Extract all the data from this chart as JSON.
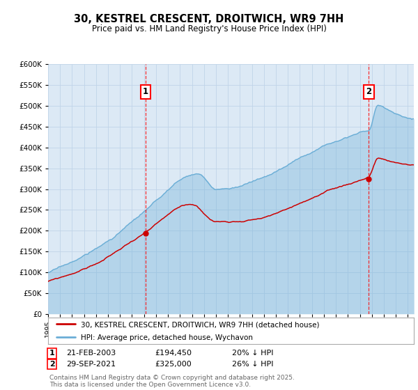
{
  "title": "30, KESTREL CRESCENT, DROITWICH, WR9 7HH",
  "subtitle": "Price paid vs. HM Land Registry's House Price Index (HPI)",
  "legend_entry1": "30, KESTREL CRESCENT, DROITWICH, WR9 7HH (detached house)",
  "legend_entry2": "HPI: Average price, detached house, Wychavon",
  "annotation1_label": "1",
  "annotation1_date": "21-FEB-2003",
  "annotation1_price": "£194,450",
  "annotation1_hpi": "20% ↓ HPI",
  "annotation2_label": "2",
  "annotation2_date": "29-SEP-2021",
  "annotation2_price": "£325,000",
  "annotation2_hpi": "26% ↓ HPI",
  "footnote": "Contains HM Land Registry data © Crown copyright and database right 2025.\nThis data is licensed under the Open Government Licence v3.0.",
  "hpi_color": "#6baed6",
  "price_color": "#cc0000",
  "marker1_year": 2003.13,
  "marker1_value": 194450,
  "marker2_year": 2021.75,
  "marker2_value": 325000,
  "ylim_max": 600000,
  "ylim_min": 0,
  "background_color": "#ffffff",
  "plot_bg_color": "#dce9f5",
  "grid_color": "#c0d4e8"
}
